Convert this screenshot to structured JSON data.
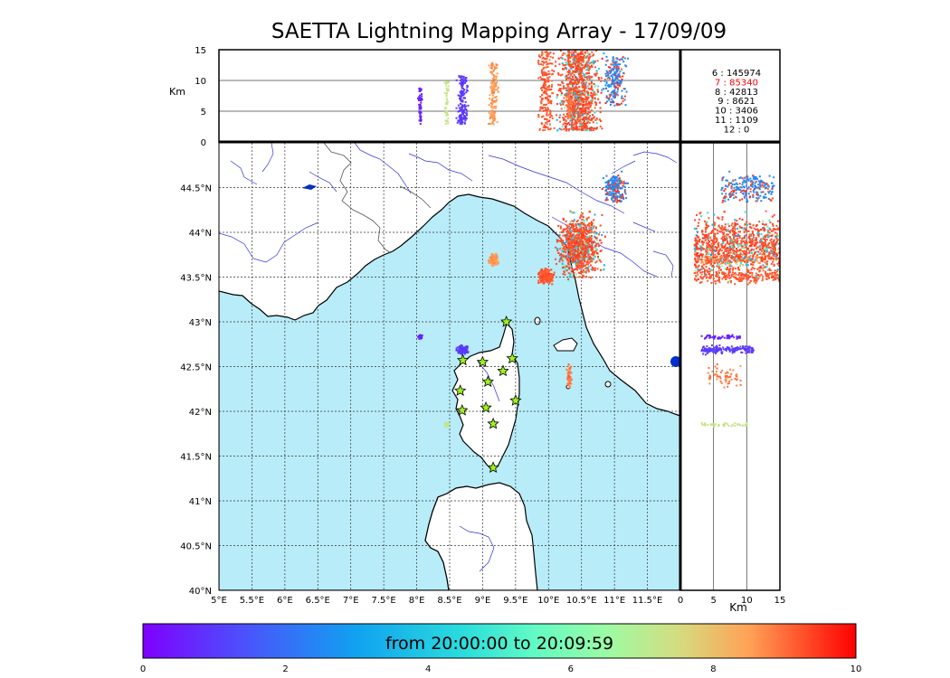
{
  "title": "SAETTA Lightning Mapping Array - 17/09/09",
  "altitude_panel": {
    "ylabel": "Km",
    "yticks": [
      0,
      5,
      10,
      15
    ],
    "ylim": [
      0,
      15
    ],
    "stats": [
      {
        "label": "6 :   145974",
        "color": "#000000"
      },
      {
        "label": "7 :    85340",
        "color": "#ff0000"
      },
      {
        "label": "8 :    42813",
        "color": "#000000"
      },
      {
        "label": "9 :     8621",
        "color": "#000000"
      },
      {
        "label": "10 :     3406",
        "color": "#000000"
      },
      {
        "label": "11 :     1109",
        "color": "#000000"
      },
      {
        "label": "12 :        0",
        "color": "#000000"
      }
    ]
  },
  "map": {
    "lon_ticks": [
      "5°E",
      "5.5°E",
      "6°E",
      "6.5°E",
      "7°E",
      "7.5°E",
      "8°E",
      "8.5°E",
      "9°E",
      "9.5°E",
      "10°E",
      "10.5°E",
      "11°E",
      "11.5°E"
    ],
    "lat_ticks": [
      "44.5°N",
      "44°N",
      "43.5°N",
      "43°N",
      "42.5°N",
      "42°N",
      "41.5°N",
      "41°N",
      "40.5°N",
      "40°N"
    ],
    "lon_range": [
      5,
      12
    ],
    "lat_range": [
      40,
      45
    ],
    "sea_color": "#b8ecf8",
    "land_color": "#ffffff",
    "river_color": "#3030e0",
    "station_color": "#9df21c",
    "stations": [
      {
        "lon": 9.36,
        "lat": 43.0
      },
      {
        "lon": 8.7,
        "lat": 42.57
      },
      {
        "lon": 9.0,
        "lat": 42.55
      },
      {
        "lon": 9.45,
        "lat": 42.59
      },
      {
        "lon": 9.31,
        "lat": 42.45
      },
      {
        "lon": 9.08,
        "lat": 42.33
      },
      {
        "lon": 8.66,
        "lat": 42.23
      },
      {
        "lon": 9.5,
        "lat": 42.12
      },
      {
        "lon": 9.05,
        "lat": 42.04
      },
      {
        "lon": 8.69,
        "lat": 42.01
      },
      {
        "lon": 9.16,
        "lat": 41.86
      },
      {
        "lon": 9.16,
        "lat": 41.37
      }
    ]
  },
  "side_panel": {
    "xlabel": "Km",
    "xticks": [
      0,
      5,
      10,
      15
    ],
    "xlim": [
      0,
      15
    ]
  },
  "colorbar": {
    "label": "from 20:00:00 to 20:09:59",
    "ticks": [
      0,
      2,
      4,
      6,
      8,
      10
    ],
    "range": [
      0,
      10
    ]
  },
  "chart_data": {
    "type": "scatter",
    "title": "SAETTA Lightning Mapping Array - 17/09/09",
    "clusters": [
      {
        "name": "",
        "time_min": 0.6,
        "lon": 8.04,
        "lat": 42.84,
        "alt_km": [
          3,
          9
        ]
      },
      {
        "name": "",
        "time_min": 1.0,
        "lon": 8.68,
        "lat": 42.7,
        "alt_km": [
          3,
          11
        ]
      },
      {
        "name": "",
        "time_min": 7.2,
        "lon": 8.44,
        "lat": 41.86,
        "alt_km": [
          3,
          10
        ]
      },
      {
        "name": "",
        "time_min": 8.6,
        "lon": 9.15,
        "lat": 43.7,
        "alt_km": [
          3,
          13
        ]
      },
      {
        "name": "",
        "time_min": 9.2,
        "lon": 9.95,
        "lat": 43.52,
        "alt_km": [
          2,
          15
        ]
      },
      {
        "name": "",
        "time_min": 9.3,
        "lon": 10.45,
        "lat": 43.85,
        "alt_km": [
          2,
          15
        ]
      },
      {
        "name": "",
        "time_min": 2.5,
        "lon": 11.0,
        "lat": 44.5,
        "alt_km": [
          6,
          14
        ]
      },
      {
        "name": "",
        "time_min": 8.9,
        "lon": 10.3,
        "lat": 42.4,
        "alt_km": [
          4,
          9
        ]
      }
    ]
  }
}
